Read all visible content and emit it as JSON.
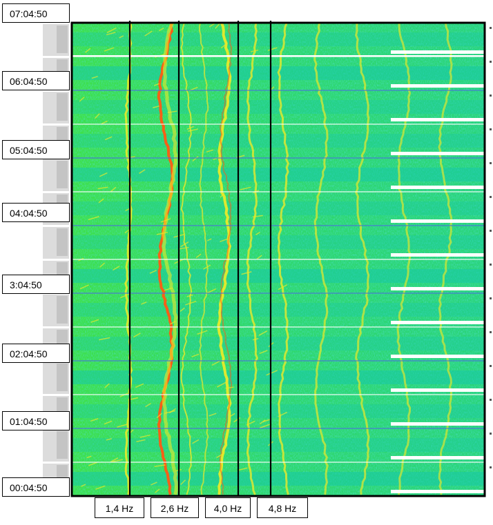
{
  "chart_data": {
    "type": "heatmap",
    "title": "",
    "xlabel": "",
    "ylabel": "",
    "y_tick_labels": [
      "07:04:50",
      "06:04:50",
      "05:04:50",
      "04:04:50",
      "3:04:50",
      "02:04:50",
      "01:04:50",
      "00:04:50"
    ],
    "x_marker_labels": [
      "1,4 Hz",
      "2,6 Hz",
      "4,0 Hz",
      "4,8 Hz"
    ],
    "x_marker_values_hz": [
      1.4,
      2.6,
      4.0,
      4.8
    ],
    "colors": {
      "background_low": "#16c8a8",
      "mid": "#3ee04a",
      "high": "#e8ea2a",
      "peak": "#ff5a12",
      "frame": "#000000"
    }
  }
}
